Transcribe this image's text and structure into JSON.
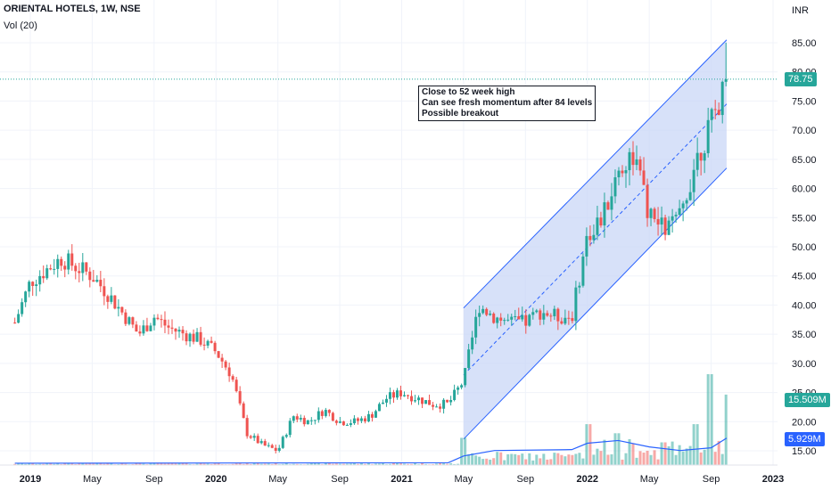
{
  "header": {
    "title": "ORIENTAL HOTELS, 1W, NSE",
    "indicator": "Vol (20)",
    "currency": "INR"
  },
  "annotation": {
    "lines": [
      "Close to 52 week high",
      "Can see fresh momentum after 84 levels",
      "Possible breakout"
    ]
  },
  "badges": {
    "last_price": "78.75",
    "volume": "15.509M",
    "volume_ma": "5.929M"
  },
  "colors": {
    "up": "#26a69a",
    "down": "#ef5350",
    "channel_line": "#2962ff",
    "channel_fill": "#c9d7f7",
    "volume_ma": "#2962ff"
  },
  "chart_data": {
    "type": "candlestick",
    "title": "ORIENTAL HOTELS, 1W, NSE",
    "ylim": [
      10,
      88
    ],
    "y_ticks": [
      "15.00",
      "20.00",
      "25.00",
      "30.00",
      "35.00",
      "40.00",
      "45.00",
      "50.00",
      "55.00",
      "60.00",
      "65.00",
      "70.00",
      "75.00",
      "80.00",
      "85.00"
    ],
    "x_ticks": [
      "2019",
      "May",
      "Sep",
      "2020",
      "May",
      "Sep",
      "2021",
      "May",
      "Sep",
      "2022",
      "May",
      "Sep",
      "2023"
    ],
    "price_path": [
      [
        "2018-12",
        37
      ],
      [
        "2019-01",
        44
      ],
      [
        "2019-03",
        48
      ],
      [
        "2019-05",
        45
      ],
      [
        "2019-06",
        42
      ],
      [
        "2019-08",
        35
      ],
      [
        "2019-09",
        38
      ],
      [
        "2019-10",
        36
      ],
      [
        "2019-11",
        35
      ],
      [
        "2019-12",
        34
      ],
      [
        "2020-01",
        32
      ],
      [
        "2020-02",
        28
      ],
      [
        "2020-03",
        18
      ],
      [
        "2020-04",
        16
      ],
      [
        "2020-05",
        15
      ],
      [
        "2020-06",
        21
      ],
      [
        "2020-07",
        20
      ],
      [
        "2020-08",
        22
      ],
      [
        "2020-09",
        20
      ],
      [
        "2020-10",
        20
      ],
      [
        "2020-11",
        21
      ],
      [
        "2020-12",
        24
      ],
      [
        "2021-01",
        25
      ],
      [
        "2021-02",
        24
      ],
      [
        "2021-03",
        23
      ],
      [
        "2021-04",
        23
      ],
      [
        "2021-05",
        27
      ],
      [
        "2021-06",
        40
      ],
      [
        "2021-07",
        38
      ],
      [
        "2021-08",
        37
      ],
      [
        "2021-09",
        37
      ],
      [
        "2021-10",
        39
      ],
      [
        "2021-11",
        38
      ],
      [
        "2021-12",
        38
      ],
      [
        "2022-01",
        52
      ],
      [
        "2022-02",
        55
      ],
      [
        "2022-03",
        63
      ],
      [
        "2022-04",
        66
      ],
      [
        "2022-05",
        55
      ],
      [
        "2022-06",
        53
      ],
      [
        "2022-07",
        55
      ],
      [
        "2022-08",
        65
      ],
      [
        "2022-09",
        71
      ],
      [
        "2022-10",
        78.75
      ]
    ],
    "price_high": 85,
    "last_close": 78.75,
    "channel": {
      "upper": [
        [
          "2021-05",
          39.5
        ],
        [
          "2022-10",
          85.5
        ]
      ],
      "middle": [
        [
          "2021-05",
          28
        ],
        [
          "2022-10",
          74.5
        ]
      ],
      "lower": [
        [
          "2021-05",
          17
        ],
        [
          "2022-10",
          63.5
        ]
      ]
    },
    "volume_ma": [
      [
        "2018-12",
        0.4
      ],
      [
        "2021-04",
        0.5
      ],
      [
        "2021-05",
        2.0
      ],
      [
        "2021-07",
        3.2
      ],
      [
        "2021-12",
        3.4
      ],
      [
        "2022-01",
        4.8
      ],
      [
        "2022-03",
        5.4
      ],
      [
        "2022-05",
        4.0
      ],
      [
        "2022-07",
        3.2
      ],
      [
        "2022-09",
        3.8
      ],
      [
        "2022-10",
        5.929
      ]
    ],
    "volume_spikes": [
      [
        "2021-05",
        6
      ],
      [
        "2022-01",
        9
      ],
      [
        "2022-03",
        7
      ],
      [
        "2022-06",
        5
      ],
      [
        "2022-08",
        9
      ],
      [
        "2022-09",
        20
      ],
      [
        "2022-10",
        15.509
      ]
    ],
    "volume_unit": "M"
  }
}
